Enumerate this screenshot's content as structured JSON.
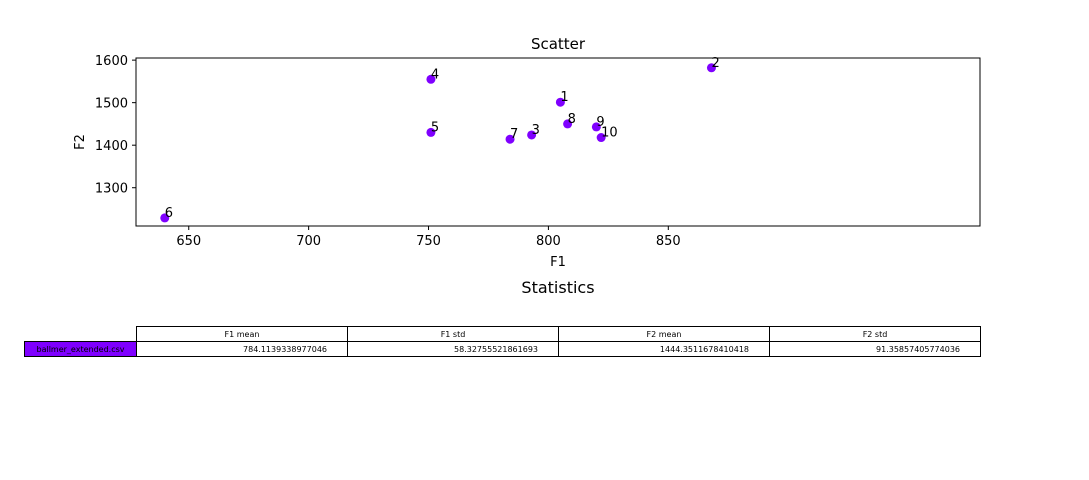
{
  "chart_data": [
    {
      "type": "scatter",
      "title": "Scatter",
      "xlabel": "F1",
      "ylabel": "F2",
      "xlim": [
        628,
        980
      ],
      "ylim": [
        1210,
        1605
      ],
      "xticks": [
        650,
        700,
        750,
        800,
        850
      ],
      "yticks": [
        1300,
        1400,
        1500,
        1600
      ],
      "marker_color": "#7f00ff",
      "points": [
        {
          "label": "1",
          "x": 805,
          "y": 1501
        },
        {
          "label": "2",
          "x": 868,
          "y": 1582
        },
        {
          "label": "3",
          "x": 793,
          "y": 1424
        },
        {
          "label": "4",
          "x": 751,
          "y": 1555
        },
        {
          "label": "5",
          "x": 751,
          "y": 1430
        },
        {
          "label": "6",
          "x": 640,
          "y": 1229
        },
        {
          "label": "7",
          "x": 784,
          "y": 1414
        },
        {
          "label": "8",
          "x": 808,
          "y": 1450
        },
        {
          "label": "9",
          "x": 820,
          "y": 1443
        },
        {
          "label": "10",
          "x": 822,
          "y": 1418
        }
      ]
    },
    {
      "type": "table",
      "title": "Statistics",
      "columns": [
        "F1 mean",
        "F1 std",
        "F2 mean",
        "F2 std"
      ],
      "rows": [
        {
          "label": "ballmer_extended.csv",
          "label_color": "#7f00ff",
          "values": [
            "784.1139338977046",
            "58.32755521861693",
            "1444.3511678410418",
            "91.35857405774036"
          ]
        }
      ]
    }
  ]
}
